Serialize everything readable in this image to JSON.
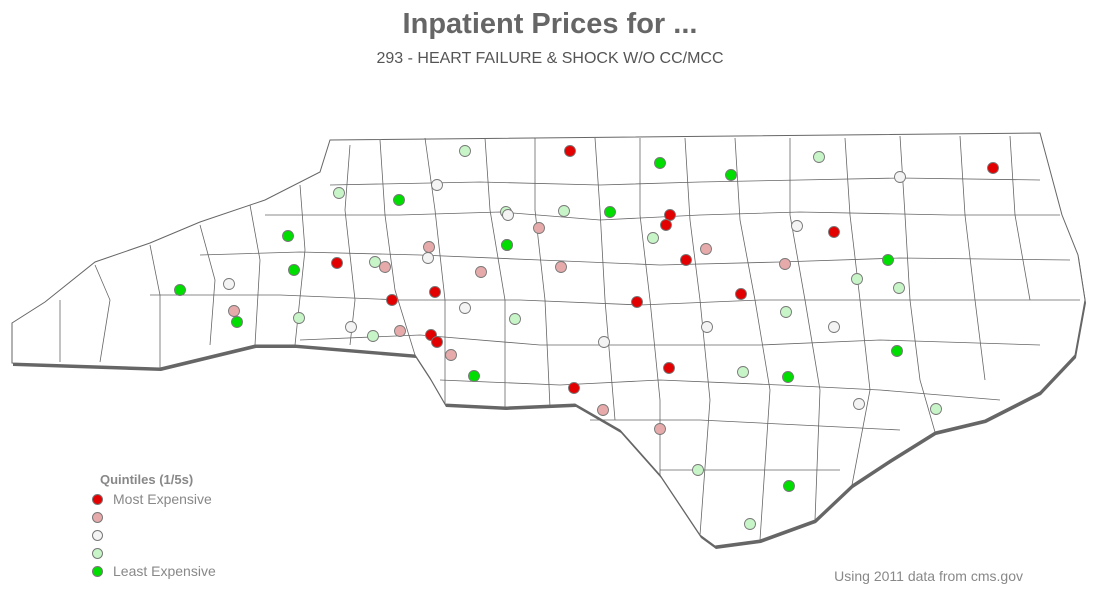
{
  "title": "Inpatient Prices for ...",
  "subtitle": "293 - HEART FAILURE & SHOCK W/O CC/MCC",
  "legend": {
    "title": "Quintiles (1/5s)",
    "items": [
      {
        "label": "Most Expensive",
        "quintile": 1,
        "color": "#e30000"
      },
      {
        "label": "",
        "quintile": 2,
        "color": "#e6aaaa"
      },
      {
        "label": "",
        "quintile": 3,
        "color": "#f4f4f4"
      },
      {
        "label": "",
        "quintile": 4,
        "color": "#c8f5c8"
      },
      {
        "label": "Least Expensive",
        "quintile": 5,
        "color": "#00dd00"
      }
    ]
  },
  "source": "Using 2011 data from cms.gov",
  "colors": {
    "q1": "#e30000",
    "q2": "#e6aaaa",
    "q3": "#f4f4f4",
    "q4": "#c8f5c8",
    "q5": "#00dd00",
    "county_border": "#666666",
    "state_fill": "#ffffff"
  },
  "hospital_quintiles": [
    4,
    1,
    5,
    5,
    5,
    4,
    3,
    1,
    4,
    5,
    3,
    4,
    4,
    5,
    3,
    2,
    1,
    1,
    4,
    5,
    3,
    2,
    5,
    2,
    3,
    2,
    5,
    5,
    1,
    4,
    2,
    3,
    1,
    2,
    4,
    5,
    1,
    1,
    4,
    1,
    4,
    3,
    5,
    2,
    1,
    2,
    2,
    4,
    3,
    1,
    1,
    1,
    3,
    4,
    3,
    4,
    5,
    2,
    4,
    3,
    5,
    3,
    1,
    2,
    4,
    2,
    4,
    5,
    1,
    5,
    4
  ]
}
